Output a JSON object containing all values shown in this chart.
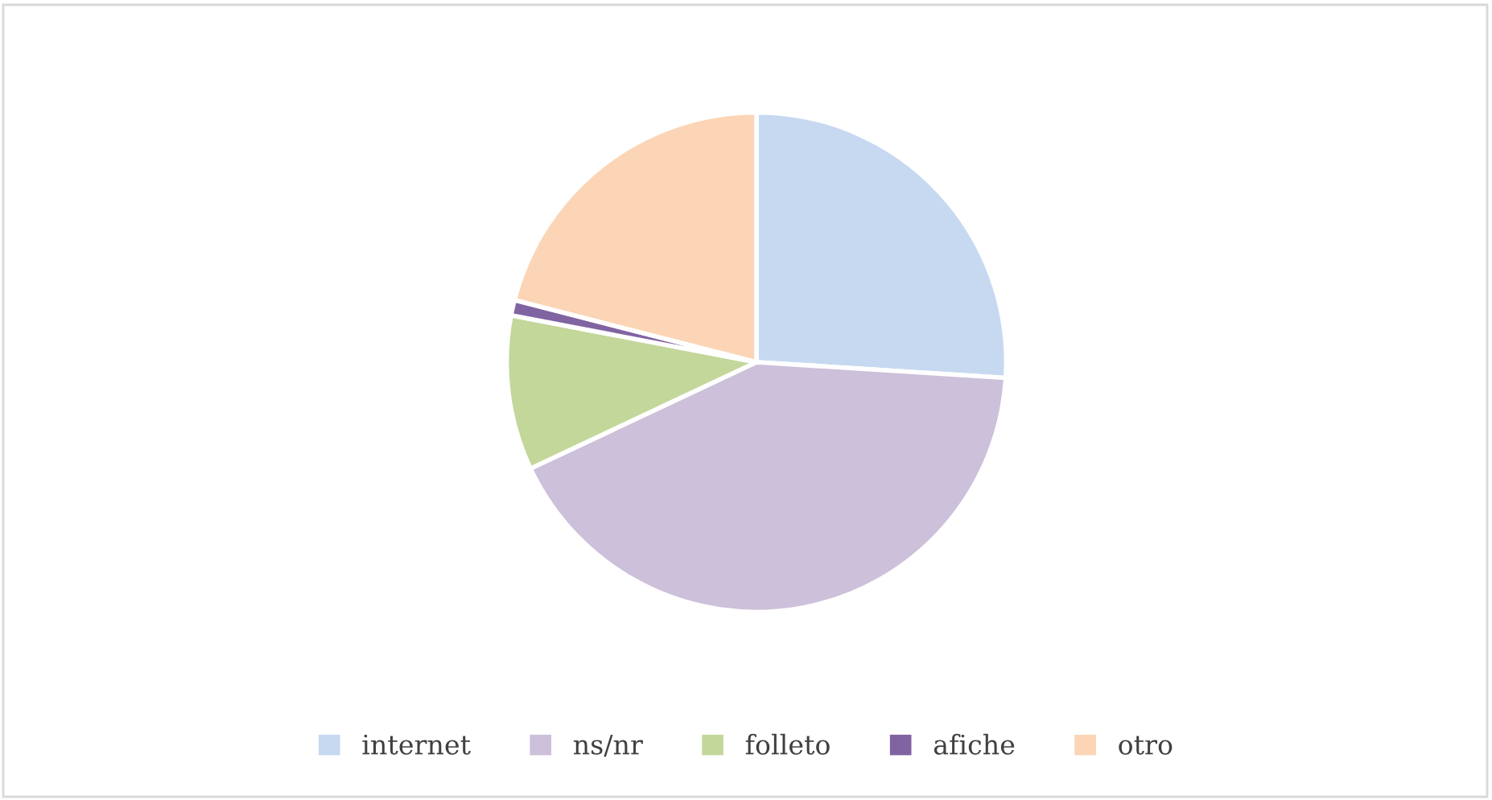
{
  "chart_data": {
    "type": "pie",
    "categories": [
      "internet",
      "ns/nr",
      "folleto",
      "afiche",
      "otro"
    ],
    "values": [
      26,
      42,
      10,
      1,
      21
    ],
    "colors": [
      "#c6d9f1",
      "#ccc0da",
      "#c4d79b",
      "#8064a2",
      "#fbd5b5"
    ],
    "legend": "bottom"
  }
}
